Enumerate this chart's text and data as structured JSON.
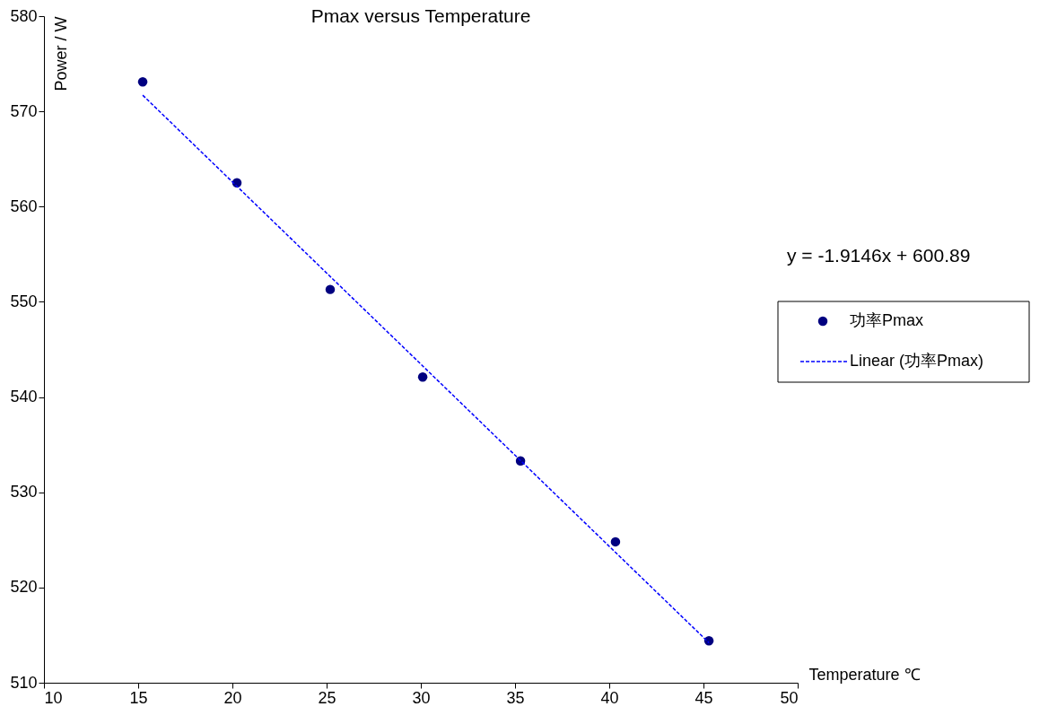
{
  "chart_data": {
    "type": "scatter",
    "title": "Pmax versus Temperature",
    "xlabel": "Temperature ℃",
    "ylabel": "Power / W",
    "xlim": [
      10,
      50
    ],
    "xticks": [
      10,
      15,
      20,
      25,
      30,
      35,
      40,
      45,
      50
    ],
    "ylim": [
      510,
      580
    ],
    "yticks": [
      510,
      520,
      530,
      540,
      550,
      560,
      570,
      580
    ],
    "grid": false,
    "legend": "right",
    "annotations": [
      "y = -1.9146x + 600.89"
    ],
    "series": [
      {
        "name": "功率Pmax",
        "color": "#000080",
        "marker": "circle",
        "x": [
          15.24,
          20.24,
          25.19,
          30.1,
          35.29,
          40.33,
          45.29
        ],
        "values": [
          573.1,
          562.5,
          551.3,
          542.1,
          533.3,
          524.8,
          514.4
        ]
      },
      {
        "name": "Linear (功率Pmax)",
        "type": "line",
        "color": "#0000ff",
        "marker": "none",
        "line_style": "dashed",
        "x": [
          15.24,
          45.29
        ],
        "values": [
          571.7,
          514.2
        ]
      }
    ]
  }
}
